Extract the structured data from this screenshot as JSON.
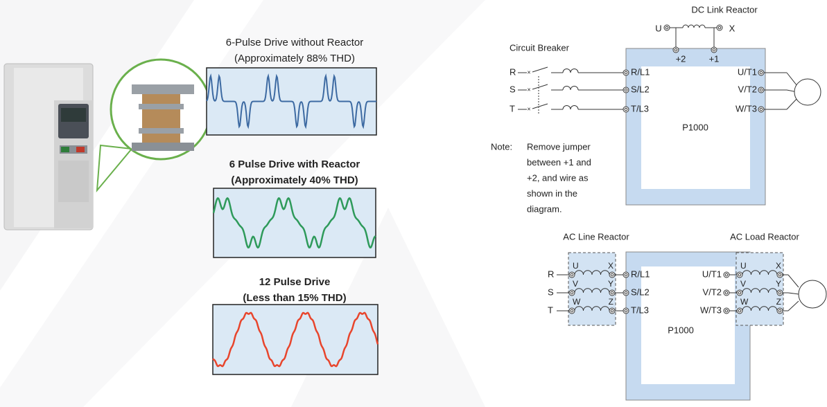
{
  "waveforms": [
    {
      "title": "6-Pulse Drive without Reactor",
      "subtitle": "(Approximately 88% THD)",
      "color": "#3d6aa2"
    },
    {
      "title": "6 Pulse Drive with Reactor",
      "subtitle": "(Approximately 40% THD)",
      "color": "#2e9a5a"
    },
    {
      "title": "12 Pulse Drive",
      "subtitle": "(Less than 15% THD)",
      "color": "#e8452c"
    }
  ],
  "dc_diagram": {
    "reactor_label": "DC Link Reactor",
    "reactor_terminals": [
      "U",
      "X"
    ],
    "jumper_terminals": [
      "+2",
      "+1"
    ],
    "breaker_label": "Circuit Breaker",
    "inputs": [
      "R",
      "S",
      "T"
    ],
    "input_terminals": [
      "R/L1",
      "S/L2",
      "T/L3"
    ],
    "output_terminals": [
      "U/T1",
      "V/T2",
      "W/T3"
    ],
    "motor": "M",
    "drive": "P1000",
    "note_label": "Note:",
    "note_lines": [
      "Remove jumper",
      "between +1 and",
      "+2, and wire as",
      "shown in the",
      "diagram."
    ]
  },
  "ac_diagram": {
    "line_reactor_label": "AC Line Reactor",
    "load_reactor_label": "AC Load Reactor",
    "inputs": [
      "R",
      "S",
      "T"
    ],
    "reactor_left": [
      "U",
      "V",
      "W"
    ],
    "reactor_right": [
      "X",
      "Y",
      "Z"
    ],
    "input_terminals": [
      "R/L1",
      "S/L2",
      "T/L3"
    ],
    "output_terminals": [
      "U/T1",
      "V/T2",
      "W/T3"
    ],
    "motor": "M",
    "drive": "P1000"
  }
}
